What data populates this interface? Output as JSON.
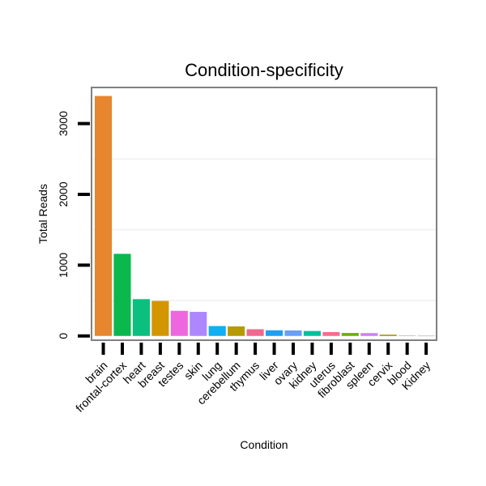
{
  "chart_data": {
    "type": "bar",
    "title": "Condition-specificity",
    "xlabel": "Condition",
    "ylabel": "Total Reads",
    "categories": [
      "brain",
      "frontal-cortex",
      "heart",
      "breast",
      "testes",
      "skin",
      "lung",
      "cerebellum",
      "thymus",
      "liver",
      "ovary",
      "kidney",
      "uterus",
      "fibroblast",
      "spleen",
      "cervix",
      "blood",
      "Kidney"
    ],
    "values": [
      3390,
      1160,
      520,
      495,
      355,
      340,
      140,
      135,
      95,
      80,
      78,
      70,
      55,
      42,
      40,
      18,
      3,
      2
    ],
    "colors": [
      "#E6862E",
      "#0AB84D",
      "#0BBF7E",
      "#D39500",
      "#EF67DE",
      "#AE87FF",
      "#10AEF2",
      "#B59B00",
      "#F0688F",
      "#1E9FF0",
      "#6A9FF5",
      "#08BE9E",
      "#F86B8D",
      "#6BB000",
      "#D27BF5",
      "#A09000",
      "#8C8C8C",
      "#8C8C8C"
    ],
    "yticks": [
      0,
      1000,
      2000,
      3000
    ],
    "ytick_labels": [
      "0",
      "1000",
      "2000",
      "3000"
    ],
    "ylim": [
      -60,
      3510
    ],
    "grid": true,
    "legend": "none"
  }
}
